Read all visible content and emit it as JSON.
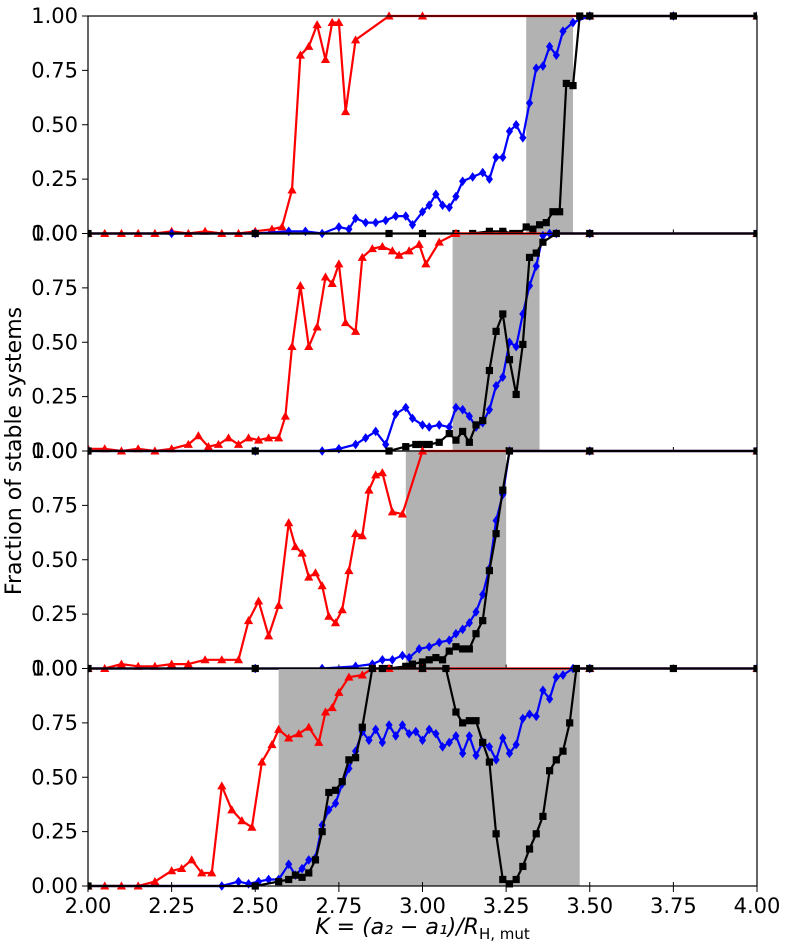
{
  "chart_data": {
    "type": "line",
    "layout": "4 vertically stacked panels sharing x axis",
    "xlim": [
      2.0,
      4.0
    ],
    "ylim": [
      0.0,
      1.0
    ],
    "xticks": [
      2.0,
      2.25,
      2.5,
      2.75,
      3.0,
      3.25,
      3.5,
      3.75,
      4.0
    ],
    "xtick_labels": [
      "2.00",
      "2.25",
      "2.50",
      "2.75",
      "3.00",
      "3.25",
      "3.50",
      "3.75",
      "4.00"
    ],
    "yticks": [
      0.0,
      0.25,
      0.5,
      0.75,
      1.0
    ],
    "ytick_labels": [
      "0.00",
      "0.25",
      "0.50",
      "0.75",
      "1.00"
    ],
    "xlabel": "K = (a₂ − a₁)/R",
    "xlabel_sub": "H, mut",
    "ylabel": "Fraction of stable systems",
    "series_styles": [
      {
        "color": "#ff0000",
        "marker": "triangle"
      },
      {
        "color": "#0000ff",
        "marker": "diamond"
      },
      {
        "color": "#000000",
        "marker": "square"
      }
    ],
    "panels": [
      {
        "shaded": [
          3.31,
          3.45
        ],
        "series": [
          {
            "x": [
              2.0,
              2.05,
              2.1,
              2.15,
              2.2,
              2.25,
              2.3,
              2.35,
              2.4,
              2.45,
              2.5,
              2.55,
              2.58,
              2.61,
              2.635,
              2.66,
              2.685,
              2.71,
              2.73,
              2.75,
              2.77,
              2.8,
              2.9,
              3.0,
              3.5,
              4.0
            ],
            "y": [
              0.0,
              0.0,
              0.0,
              0.0,
              0.0,
              0.01,
              0.0,
              0.01,
              0.0,
              0.0,
              0.01,
              0.02,
              0.03,
              0.2,
              0.82,
              0.86,
              0.96,
              0.8,
              0.97,
              0.97,
              0.56,
              0.89,
              1.0,
              1.0,
              1.0,
              1.0
            ]
          },
          {
            "x": [
              2.0,
              2.25,
              2.5,
              2.6,
              2.65,
              2.7,
              2.75,
              2.78,
              2.8,
              2.83,
              2.86,
              2.89,
              2.92,
              2.95,
              2.97,
              3.0,
              3.02,
              3.04,
              3.06,
              3.08,
              3.1,
              3.12,
              3.15,
              3.18,
              3.2,
              3.22,
              3.24,
              3.26,
              3.28,
              3.3,
              3.32,
              3.34,
              3.36,
              3.38,
              3.4,
              3.42,
              3.45,
              3.5,
              3.75,
              4.0
            ],
            "y": [
              0.0,
              0.0,
              0.0,
              0.01,
              0.01,
              0.0,
              0.03,
              0.02,
              0.07,
              0.05,
              0.05,
              0.06,
              0.08,
              0.08,
              0.04,
              0.1,
              0.13,
              0.18,
              0.13,
              0.12,
              0.17,
              0.24,
              0.26,
              0.28,
              0.25,
              0.35,
              0.35,
              0.47,
              0.5,
              0.44,
              0.6,
              0.76,
              0.77,
              0.86,
              0.82,
              0.93,
              0.97,
              1.0,
              1.0,
              1.0
            ]
          },
          {
            "x": [
              2.0,
              2.5,
              2.9,
              3.0,
              3.1,
              3.15,
              3.2,
              3.24,
              3.27,
              3.29,
              3.31,
              3.33,
              3.35,
              3.37,
              3.39,
              3.41,
              3.43,
              3.45,
              3.47,
              3.5,
              3.75,
              4.0
            ],
            "y": [
              0.0,
              0.0,
              0.0,
              0.0,
              0.0,
              0.0,
              0.01,
              0.01,
              0.0,
              0.0,
              0.03,
              0.02,
              0.04,
              0.05,
              0.1,
              0.1,
              0.69,
              0.68,
              1.0,
              1.0,
              1.0,
              1.0
            ]
          }
        ]
      },
      {
        "shaded": [
          3.09,
          3.35
        ],
        "series": [
          {
            "x": [
              2.0,
              2.05,
              2.1,
              2.15,
              2.2,
              2.25,
              2.3,
              2.33,
              2.36,
              2.39,
              2.42,
              2.45,
              2.48,
              2.51,
              2.54,
              2.57,
              2.59,
              2.61,
              2.635,
              2.66,
              2.685,
              2.71,
              2.73,
              2.75,
              2.77,
              2.8,
              2.82,
              2.85,
              2.88,
              2.91,
              2.93,
              2.96,
              2.99,
              3.01,
              3.05,
              3.1,
              3.5,
              4.0
            ],
            "y": [
              0.01,
              0.01,
              0.0,
              0.01,
              0.0,
              0.01,
              0.03,
              0.07,
              0.02,
              0.03,
              0.06,
              0.03,
              0.06,
              0.05,
              0.06,
              0.06,
              0.16,
              0.48,
              0.76,
              0.48,
              0.57,
              0.8,
              0.77,
              0.86,
              0.59,
              0.55,
              0.89,
              0.93,
              0.94,
              0.92,
              0.9,
              0.92,
              0.95,
              0.86,
              0.96,
              1.0,
              1.0,
              1.0
            ]
          },
          {
            "x": [
              2.0,
              2.5,
              2.7,
              2.75,
              2.8,
              2.83,
              2.86,
              2.89,
              2.92,
              2.95,
              2.97,
              3.0,
              3.02,
              3.05,
              3.08,
              3.1,
              3.12,
              3.14,
              3.16,
              3.18,
              3.2,
              3.22,
              3.24,
              3.26,
              3.28,
              3.3,
              3.32,
              3.34,
              3.36,
              3.38,
              3.4,
              3.5,
              4.0
            ],
            "y": [
              0.0,
              0.0,
              0.0,
              0.01,
              0.03,
              0.06,
              0.09,
              0.03,
              0.17,
              0.2,
              0.15,
              0.12,
              0.11,
              0.12,
              0.11,
              0.2,
              0.19,
              0.16,
              0.11,
              0.13,
              0.19,
              0.3,
              0.34,
              0.5,
              0.48,
              0.63,
              0.76,
              0.85,
              0.99,
              1.0,
              1.0,
              1.0,
              1.0
            ]
          },
          {
            "x": [
              2.0,
              2.5,
              2.9,
              2.95,
              2.98,
              3.0,
              3.02,
              3.05,
              3.08,
              3.1,
              3.12,
              3.14,
              3.16,
              3.18,
              3.2,
              3.22,
              3.24,
              3.26,
              3.28,
              3.3,
              3.32,
              3.34,
              3.36,
              3.4,
              3.5,
              4.0
            ],
            "y": [
              0.0,
              0.0,
              0.0,
              0.02,
              0.03,
              0.03,
              0.03,
              0.04,
              0.08,
              0.05,
              0.09,
              0.04,
              0.12,
              0.14,
              0.37,
              0.55,
              0.63,
              0.42,
              0.26,
              0.49,
              0.89,
              0.91,
              0.96,
              1.0,
              1.0,
              1.0
            ]
          }
        ]
      },
      {
        "shaded": [
          2.95,
          3.25
        ],
        "series": [
          {
            "x": [
              2.0,
              2.05,
              2.1,
              2.15,
              2.2,
              2.25,
              2.3,
              2.35,
              2.4,
              2.45,
              2.48,
              2.51,
              2.54,
              2.57,
              2.6,
              2.62,
              2.64,
              2.66,
              2.68,
              2.7,
              2.72,
              2.74,
              2.76,
              2.78,
              2.8,
              2.82,
              2.84,
              2.86,
              2.88,
              2.91,
              2.94,
              3.0,
              3.5,
              4.0
            ],
            "y": [
              0.0,
              0.0,
              0.02,
              0.01,
              0.01,
              0.02,
              0.02,
              0.04,
              0.04,
              0.04,
              0.22,
              0.31,
              0.15,
              0.29,
              0.67,
              0.56,
              0.53,
              0.42,
              0.44,
              0.38,
              0.24,
              0.21,
              0.27,
              0.45,
              0.62,
              0.61,
              0.82,
              0.89,
              0.9,
              0.72,
              0.71,
              1.0,
              1.0,
              1.0
            ]
          },
          {
            "x": [
              2.0,
              2.5,
              2.7,
              2.8,
              2.85,
              2.88,
              2.91,
              2.94,
              2.96,
              2.99,
              3.02,
              3.05,
              3.08,
              3.1,
              3.12,
              3.14,
              3.16,
              3.18,
              3.2,
              3.22,
              3.24,
              3.26,
              3.5,
              4.0
            ],
            "y": [
              0.0,
              0.0,
              0.0,
              0.01,
              0.02,
              0.04,
              0.04,
              0.06,
              0.05,
              0.09,
              0.1,
              0.12,
              0.13,
              0.16,
              0.18,
              0.21,
              0.26,
              0.34,
              0.46,
              0.68,
              0.8,
              1.0,
              1.0,
              1.0
            ]
          },
          {
            "x": [
              2.0,
              2.5,
              2.9,
              2.95,
              2.97,
              3.0,
              3.02,
              3.04,
              3.06,
              3.08,
              3.1,
              3.12,
              3.14,
              3.16,
              3.18,
              3.2,
              3.22,
              3.24,
              3.26,
              3.5,
              4.0
            ],
            "y": [
              0.0,
              0.0,
              0.0,
              0.01,
              0.02,
              0.03,
              0.04,
              0.05,
              0.04,
              0.08,
              0.1,
              0.09,
              0.09,
              0.16,
              0.22,
              0.45,
              0.62,
              0.82,
              1.0,
              1.0,
              1.0
            ]
          }
        ]
      },
      {
        "shaded": [
          2.57,
          3.47
        ],
        "series": [
          {
            "x": [
              2.0,
              2.05,
              2.1,
              2.15,
              2.2,
              2.25,
              2.28,
              2.31,
              2.34,
              2.37,
              2.4,
              2.43,
              2.46,
              2.49,
              2.52,
              2.55,
              2.57,
              2.6,
              2.63,
              2.66,
              2.69,
              2.71,
              2.73,
              2.75,
              2.78,
              2.82,
              2.85,
              2.9,
              3.0,
              3.5,
              4.0
            ],
            "y": [
              0.0,
              0.0,
              0.0,
              0.0,
              0.02,
              0.07,
              0.08,
              0.12,
              0.06,
              0.06,
              0.46,
              0.35,
              0.3,
              0.27,
              0.57,
              0.65,
              0.72,
              0.68,
              0.7,
              0.73,
              0.66,
              0.8,
              0.82,
              0.89,
              0.96,
              0.97,
              1.0,
              1.0,
              1.0,
              1.0,
              1.0
            ]
          },
          {
            "x": [
              2.0,
              2.4,
              2.45,
              2.48,
              2.51,
              2.54,
              2.57,
              2.6,
              2.62,
              2.64,
              2.66,
              2.68,
              2.7,
              2.72,
              2.74,
              2.76,
              2.78,
              2.8,
              2.82,
              2.84,
              2.86,
              2.88,
              2.9,
              2.92,
              2.94,
              2.96,
              2.98,
              3.0,
              3.02,
              3.04,
              3.06,
              3.08,
              3.1,
              3.12,
              3.14,
              3.16,
              3.18,
              3.2,
              3.22,
              3.24,
              3.26,
              3.28,
              3.3,
              3.32,
              3.34,
              3.36,
              3.38,
              3.4,
              3.42,
              3.45,
              3.5,
              4.0
            ],
            "y": [
              0.0,
              0.0,
              0.02,
              0.01,
              0.02,
              0.03,
              0.03,
              0.1,
              0.05,
              0.08,
              0.12,
              0.13,
              0.28,
              0.35,
              0.38,
              0.47,
              0.54,
              0.62,
              0.71,
              0.67,
              0.72,
              0.66,
              0.74,
              0.69,
              0.74,
              0.7,
              0.71,
              0.67,
              0.72,
              0.7,
              0.64,
              0.66,
              0.69,
              0.61,
              0.69,
              0.6,
              0.66,
              0.64,
              0.58,
              0.68,
              0.61,
              0.65,
              0.77,
              0.79,
              0.78,
              0.9,
              0.86,
              0.96,
              0.97,
              1.0,
              1.0,
              1.0
            ]
          },
          {
            "x": [
              2.0,
              2.5,
              2.57,
              2.6,
              2.62,
              2.64,
              2.66,
              2.68,
              2.7,
              2.72,
              2.74,
              2.76,
              2.78,
              2.8,
              2.82,
              2.85,
              2.88,
              3.0,
              3.07,
              3.1,
              3.12,
              3.14,
              3.16,
              3.18,
              3.2,
              3.22,
              3.24,
              3.26,
              3.28,
              3.3,
              3.32,
              3.34,
              3.36,
              3.38,
              3.4,
              3.42,
              3.44,
              3.46,
              3.5,
              3.75,
              4.0
            ],
            "y": [
              0.0,
              0.0,
              0.02,
              0.03,
              0.05,
              0.04,
              0.06,
              0.12,
              0.25,
              0.43,
              0.44,
              0.48,
              0.58,
              0.59,
              0.73,
              1.0,
              1.0,
              1.0,
              1.0,
              0.8,
              0.75,
              0.76,
              0.76,
              0.66,
              0.57,
              0.24,
              0.03,
              0.01,
              0.03,
              0.09,
              0.17,
              0.24,
              0.32,
              0.53,
              0.58,
              0.62,
              0.75,
              1.0,
              1.0,
              1.0,
              1.0
            ]
          }
        ]
      }
    ]
  }
}
